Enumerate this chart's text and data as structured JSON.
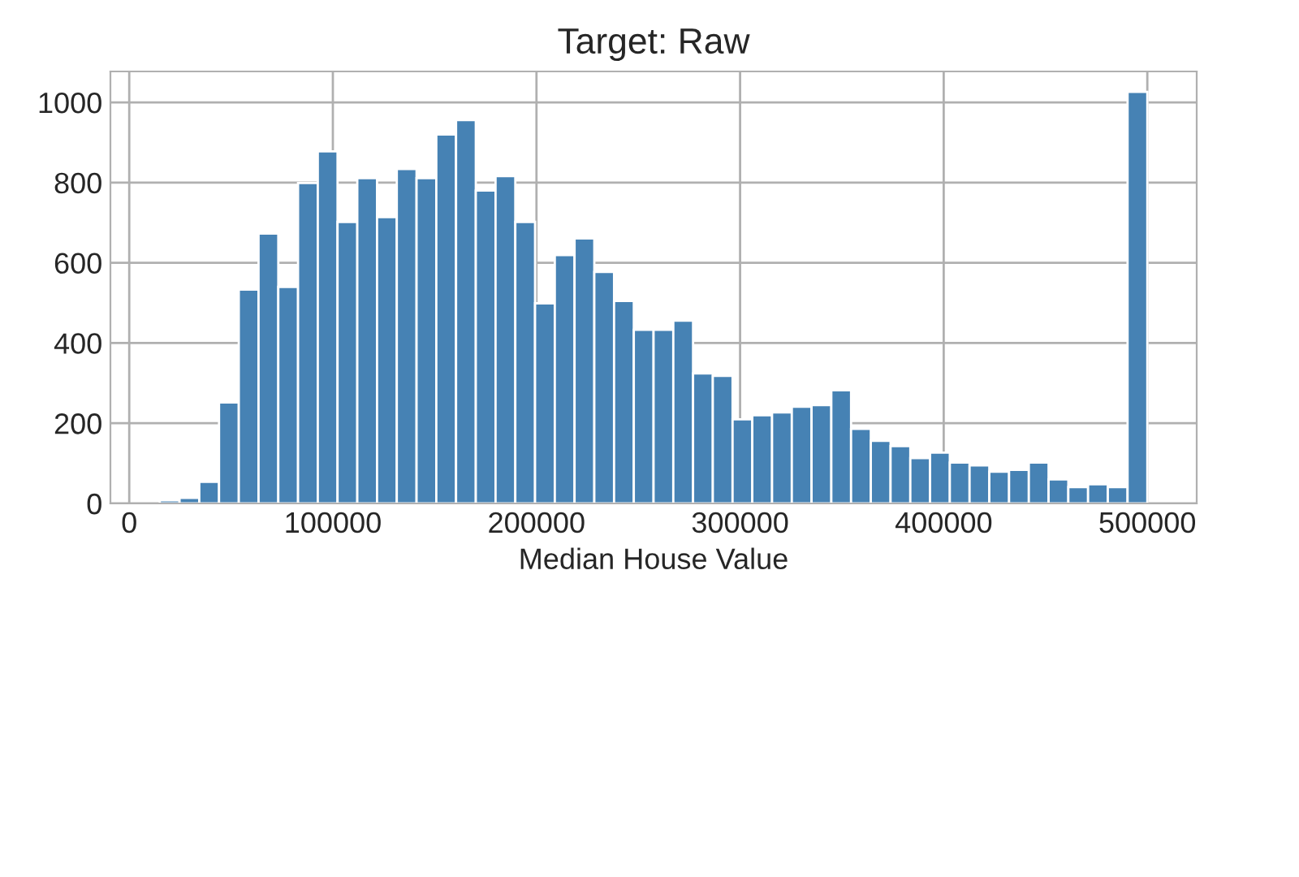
{
  "chart_data": {
    "type": "histogram",
    "title": "Target: Raw",
    "xlabel": "Median House Value",
    "bins": [
      14999,
      24699,
      34399,
      44099,
      53799,
      63499,
      73199,
      82899,
      92599,
      102299,
      112000,
      121700,
      131400,
      141100,
      150800,
      160500,
      170200,
      179900,
      189600,
      199300,
      209001,
      218701,
      228401,
      238101,
      247801,
      257501,
      267201,
      276901,
      286601,
      296301,
      306001,
      315701,
      325401,
      335101,
      344801,
      354501,
      364201,
      373901,
      383601,
      393301,
      403001,
      412702,
      422402,
      432102,
      441802,
      451502,
      461202,
      470902,
      480602,
      490302,
      500001
    ],
    "values": [
      8,
      14,
      54,
      252,
      533,
      673,
      540,
      799,
      878,
      702,
      811,
      714,
      834,
      811,
      920,
      956,
      780,
      816,
      702,
      499,
      619,
      661,
      577,
      505,
      433,
      433,
      456,
      324,
      318,
      210,
      220,
      227,
      241,
      245,
      282,
      186,
      156,
      143,
      113,
      127,
      102,
      95,
      79,
      84,
      102,
      60,
      41,
      48,
      41,
      1026
    ],
    "color": "#4682b4",
    "xlim": [
      -9251,
      524251
    ],
    "ylim": [
      0,
      1077
    ],
    "xticks": [
      0,
      100000,
      200000,
      300000,
      400000,
      500000
    ],
    "yticks": [
      0,
      200,
      400,
      600,
      800,
      1000
    ],
    "grid": true
  }
}
